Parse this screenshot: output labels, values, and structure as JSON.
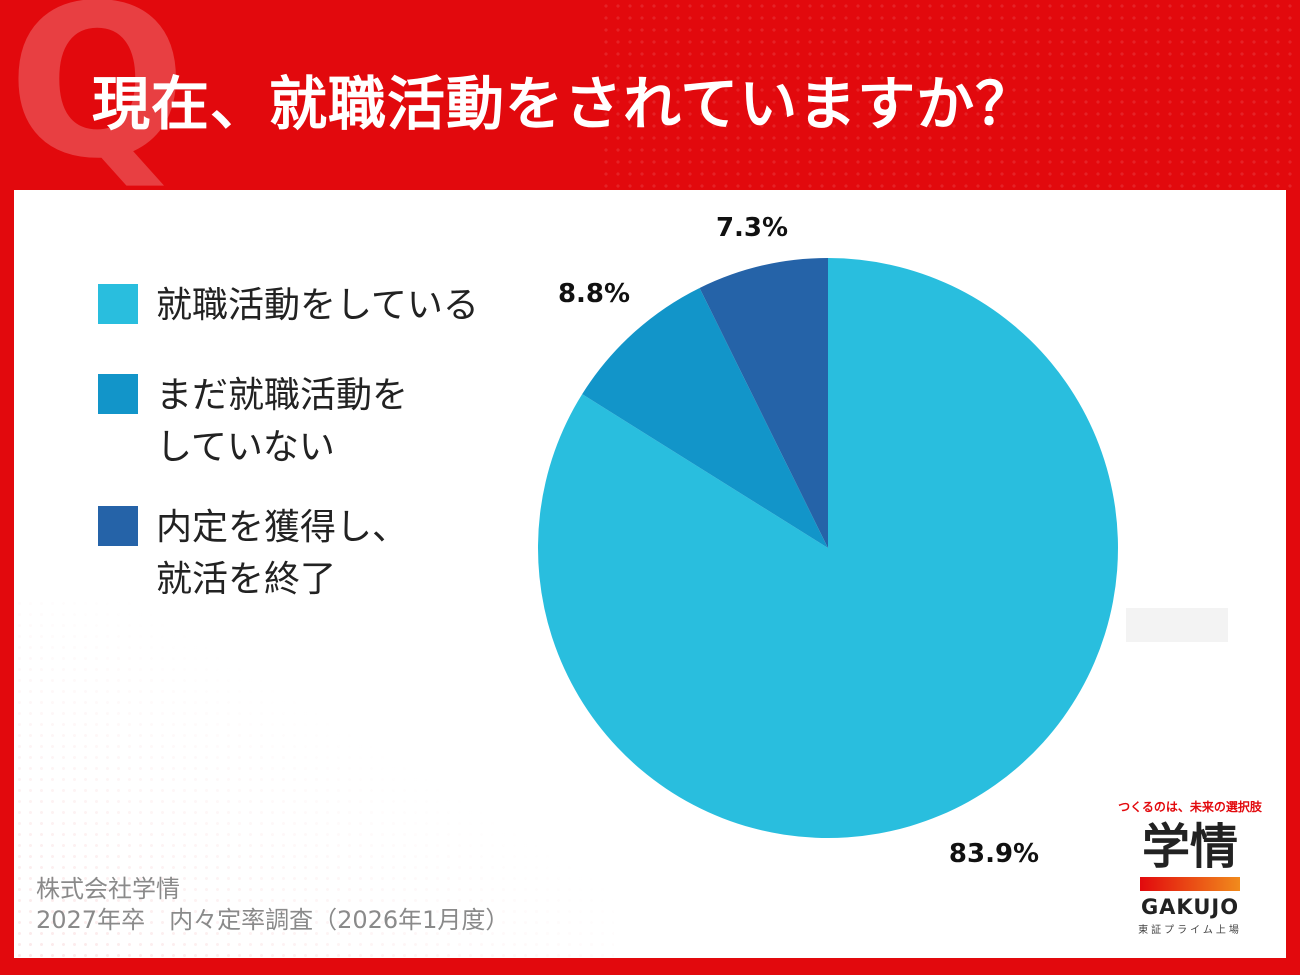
{
  "header": {
    "q_mark": "Q",
    "title": "現在、就職活動をされていますか？"
  },
  "chart_data": {
    "type": "pie",
    "title": "現在、就職活動をされていますか？",
    "slices": [
      {
        "label": "就職活動をしている",
        "value": 83.9,
        "value_label": "83.9%",
        "color": "#29bede"
      },
      {
        "label": "まだ就職活動を\nしていない",
        "value": 8.8,
        "value_label": "8.8%",
        "color": "#1295c9"
      },
      {
        "label": "内定を獲得し、\n就活を終了",
        "value": 7.3,
        "value_label": "7.3%",
        "color": "#2563a8"
      }
    ],
    "start_angle": "12 o'clock",
    "direction": "clockwise",
    "legend_position": "left"
  },
  "footer": {
    "source": "株式会社学情\n2027年卒　内々定率調査（2026年1月度）"
  },
  "logo": {
    "tagline": "つくるのは、未来の選択肢",
    "name": "学情",
    "roman": "GAKUJO",
    "market": "東証プライム上場"
  }
}
